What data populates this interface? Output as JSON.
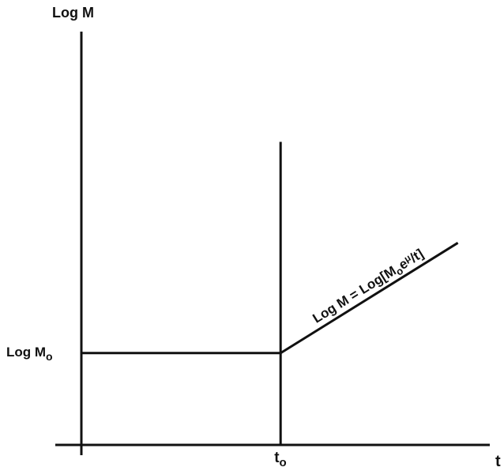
{
  "chart_data": {
    "type": "line",
    "title": "",
    "ylabel": "Log M",
    "xlabel": "t",
    "y_tick_label": {
      "main": "Log M",
      "sub": "o"
    },
    "x_tick_label": {
      "main": "t",
      "sub": "o"
    },
    "annotation": {
      "prefix": "Log M = Log[M",
      "sub": "o",
      "mid": "e",
      "suffix": "t]"
    },
    "series": [
      {
        "x": [
          0,
          1,
          1.89
        ],
        "y": [
          1,
          1,
          2.2
        ]
      }
    ],
    "vertical_marker": {
      "x": 1,
      "y_top": 3.3
    },
    "xlim": [
      0,
      2.05
    ],
    "ylim": [
      0,
      4.5
    ],
    "grid": false,
    "legend": "none",
    "colors": {
      "line": "#111111",
      "background": "#ffffff"
    }
  }
}
